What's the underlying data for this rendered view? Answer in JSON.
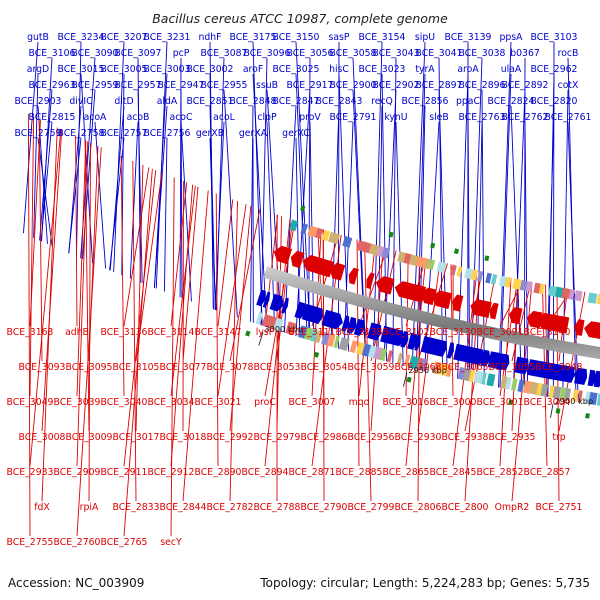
{
  "title": "Bacillus cereus ATCC 10987, complete genome",
  "footer": {
    "accession": "Accession: NC_003909",
    "summary": "Topology: circular; Length: 5,224,283 bp; Genes: 5,735"
  },
  "colors": {
    "forward": "#0000cc",
    "reverse": "#dd0000",
    "backbone": "#888888",
    "marker": "#118811"
  },
  "scale_ticks": [
    "3000 kbp",
    "2950 kbp",
    "2900 kbp",
    "2850 kbp",
    "2800 kbp",
    "2750 kbp",
    "2700 kbp",
    "2650 kbp"
  ],
  "top_labels": [
    "gutB",
    "BCE_3234",
    "BCE_3207",
    "BCE_3231",
    "ndhF",
    "BCE_3175",
    "BCE_3150",
    "sasP",
    "BCE_3154",
    "sipU",
    "BCE_3139",
    "ppsA",
    "BCE_3103",
    "BCE_3106",
    "BCE_3090",
    "BCE_3097",
    "pcP",
    "BCE_3087",
    "BCE_3096",
    "BCE_3056",
    "BCE_3058",
    "BCE_3043",
    "BCE_3041",
    "BCE_3038",
    "b0367",
    "rocB",
    "argD",
    "BCE_3015",
    "BCE_3005",
    "BCE_3003",
    "BCE_3002",
    "aroF",
    "BCE_3025",
    "hisC",
    "BCE_3023",
    "tyrA",
    "aroA",
    "ulaA",
    "BCE_2962",
    "BCE_2963",
    "BCE_2959",
    "BCE_2957",
    "BCE_2947",
    "BCE_2955",
    "ssuB",
    "BCE_2917",
    "BCE_2900",
    "BCE_2902",
    "BCE_2897",
    "BCE_2896",
    "BCE_2892",
    "cotX",
    "BCE_2903",
    "divIC",
    "dltD",
    "aldA",
    "BCE_2851",
    "BCE_2848",
    "BCE_2847",
    "BCE_2843",
    "recQ",
    "BCE_2856",
    "ppaC",
    "BCE_2824",
    "BCE_2820",
    "BCE_2815",
    "acoA",
    "acoB",
    "acoC",
    "acoL",
    "clpP",
    "proV",
    "BCE_2791",
    "kynU",
    "sleB",
    "BCE_2763",
    "BCE_2762",
    "BCE_2761",
    "BCE_2759",
    "BCE_2758",
    "BCE_2757",
    "BCE_2756",
    "gerXB",
    "gerXA",
    "gerXC"
  ],
  "bottom_labels": [
    "BCE_3163",
    "adhB",
    "BCE_3136",
    "BCE_3114",
    "BCE_3147",
    "lysP",
    "BCE_3111",
    "BCE_3138",
    "BCE_3102",
    "BCE_3130",
    "BCE_3091",
    "BCE_3140",
    "BCE_3093",
    "BCE_3095",
    "BCE_3105",
    "BCE_3077",
    "BCE_3078",
    "BCE_3053",
    "BCE_3054",
    "BCE_3059",
    "BCE_3068",
    "BCE_3065",
    "BCE_3055",
    "BCE_3048",
    "BCE_3049",
    "BCE_3039",
    "BCE_3040",
    "BCE_3034",
    "BCE_3021",
    "proC",
    "BCE_3007",
    "mqo",
    "BCE_3016",
    "BCE_3000",
    "BCE_3001",
    "BCE_3004",
    "BCE_3008",
    "BCE_3009",
    "BCE_3017",
    "BCE_3018",
    "BCE_2992",
    "BCE_2979",
    "BCE_2986",
    "BCE_2956",
    "BCE_2930",
    "BCE_2938",
    "BCE_2935",
    "trp",
    "BCE_2933",
    "BCE_2909",
    "BCE_2911",
    "BCE_2912",
    "BCE_2890",
    "BCE_2894",
    "BCE_2871",
    "BCE_2885",
    "BCE_2865",
    "BCE_2845",
    "BCE_2852",
    "BCE_2857",
    "fdX",
    "rpiA",
    "BCE_2833",
    "BCE_2844",
    "BCE_2782",
    "BCE_2788",
    "BCE_2790",
    "BCE_2799",
    "BCE_2806",
    "BCE_2800",
    "OmpR2",
    "BCE_2751",
    "BCE_2755",
    "BCE_2760",
    "BCE_2765",
    "secY"
  ]
}
